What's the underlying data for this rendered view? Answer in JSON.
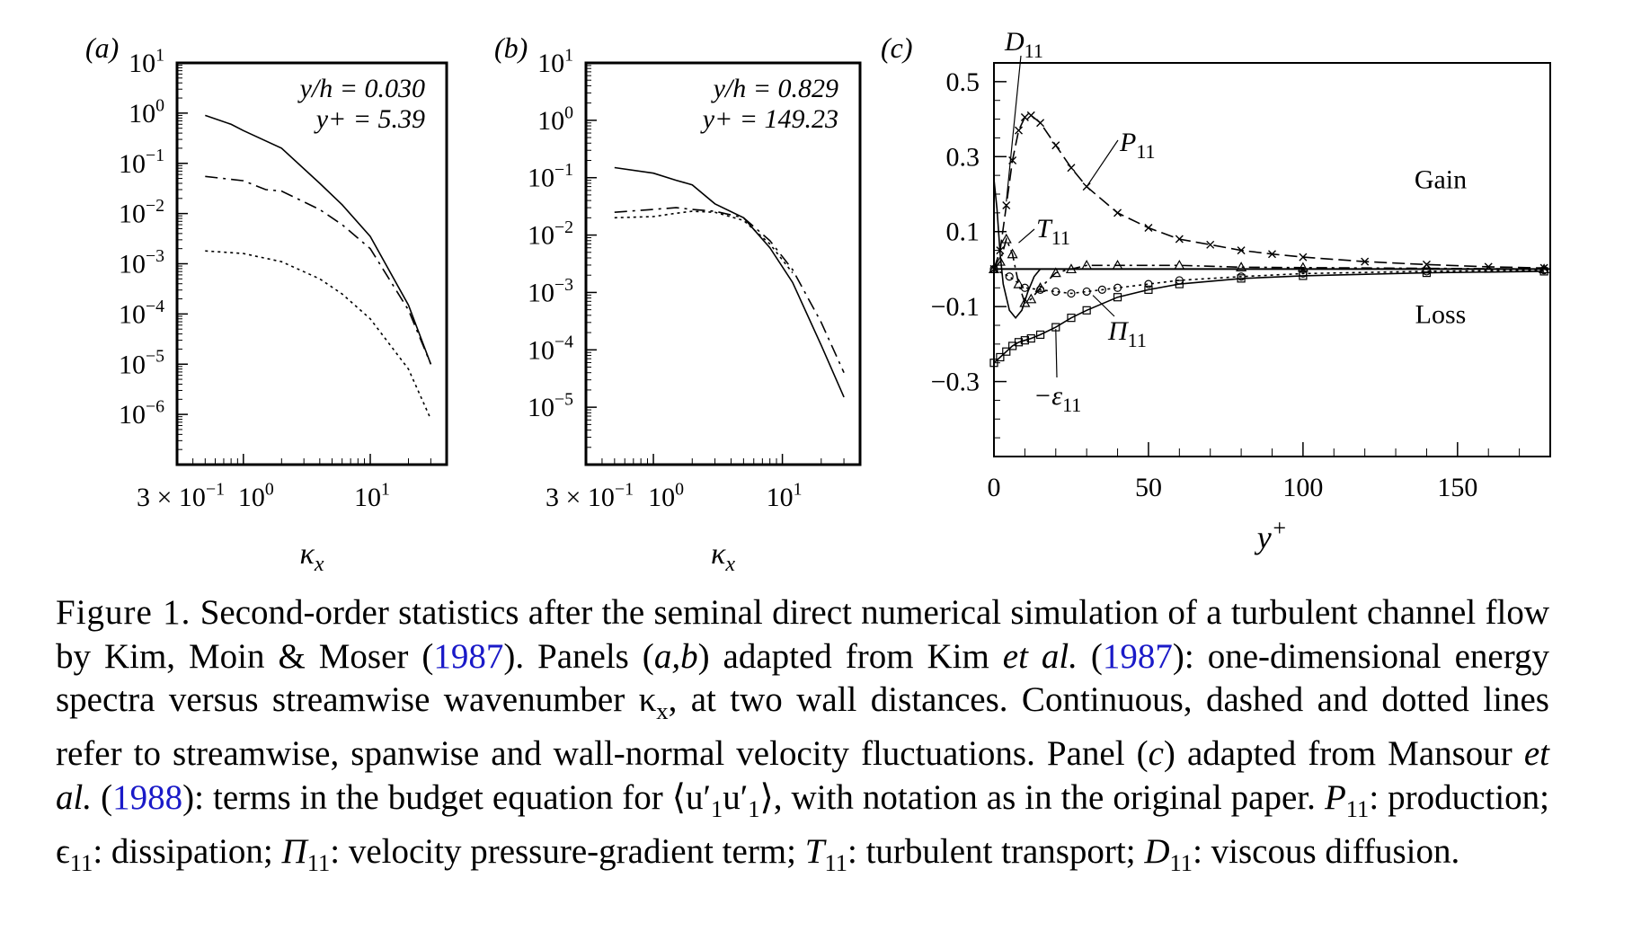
{
  "panels": {
    "a": {
      "label": "(a)",
      "ann_line1": "y/h = 0.030",
      "ann_line2": "y+ = 5.39",
      "yticks": [
        {
          "m": "10",
          "e": "1"
        },
        {
          "m": "10",
          "e": "0"
        },
        {
          "m": "10",
          "e": "−1"
        },
        {
          "m": "10",
          "e": "−2"
        },
        {
          "m": "10",
          "e": "−3"
        },
        {
          "m": "10",
          "e": "−4"
        },
        {
          "m": "10",
          "e": "−5"
        },
        {
          "m": "10",
          "e": "−6"
        }
      ],
      "xticks": [
        {
          "m": "3 × 10",
          "e": "−1"
        },
        {
          "m": "10",
          "e": "0"
        },
        {
          "m": "10",
          "e": "1"
        }
      ],
      "xlabel": "κx"
    },
    "b": {
      "label": "(b)",
      "ann_line1": "y/h = 0.829",
      "ann_line2": "y+ = 149.23",
      "yticks": [
        {
          "m": "10",
          "e": "1"
        },
        {
          "m": "10",
          "e": "0"
        },
        {
          "m": "10",
          "e": "−1"
        },
        {
          "m": "10",
          "e": "−2"
        },
        {
          "m": "10",
          "e": "−3"
        },
        {
          "m": "10",
          "e": "−4"
        },
        {
          "m": "10",
          "e": "−5"
        }
      ],
      "xticks": [
        {
          "m": "3 × 10",
          "e": "−1"
        },
        {
          "m": "10",
          "e": "0"
        },
        {
          "m": "10",
          "e": "1"
        }
      ],
      "xlabel": "κx"
    },
    "c": {
      "label": "(c)",
      "yticks": [
        "0.5",
        "0.3",
        "0.1",
        "−0.1",
        "−0.3"
      ],
      "xticks": [
        "0",
        "50",
        "100",
        "150"
      ],
      "xlabel": "y+",
      "gain": "Gain",
      "loss": "Loss",
      "term_labels": [
        "D11",
        "P11",
        "T11",
        "Π11",
        "−ε11"
      ]
    }
  },
  "chart_data": [
    {
      "type": "line",
      "panel": "a",
      "log_x": true,
      "log_y": true,
      "xlim": [
        0.3,
        40
      ],
      "ylim": [
        1e-07,
        10
      ],
      "xlabel": "κx",
      "annotations": [
        "y/h = 0.030",
        "y+ = 5.39"
      ],
      "series": [
        {
          "style": "solid",
          "x": [
            0.5,
            0.8,
            1,
            2,
            4,
            6,
            10,
            20,
            30
          ],
          "y": [
            0.9,
            0.6,
            0.45,
            0.2,
            0.04,
            0.015,
            0.0035,
            0.00015,
            1e-05
          ]
        },
        {
          "style": "dashed",
          "x": [
            0.5,
            1,
            1.5,
            2,
            4,
            6,
            10,
            20,
            30
          ],
          "y": [
            0.055,
            0.045,
            0.03,
            0.028,
            0.012,
            0.006,
            0.002,
            0.00012,
            1e-05
          ]
        },
        {
          "style": "dotted",
          "x": [
            0.5,
            1,
            2,
            4,
            6,
            10,
            20,
            30
          ],
          "y": [
            0.0018,
            0.0016,
            0.0011,
            0.0005,
            0.00025,
            8e-05,
            8e-06,
            8e-07
          ]
        }
      ]
    },
    {
      "type": "line",
      "panel": "b",
      "log_x": true,
      "log_y": true,
      "xlim": [
        0.3,
        40
      ],
      "ylim": [
        1e-06,
        10
      ],
      "xlabel": "κx",
      "annotations": [
        "y/h = 0.829",
        "y+ = 149.23"
      ],
      "series": [
        {
          "style": "solid",
          "x": [
            0.5,
            1,
            1.5,
            2,
            3,
            5,
            8,
            12,
            20,
            30
          ],
          "y": [
            0.15,
            0.12,
            0.09,
            0.075,
            0.035,
            0.02,
            0.006,
            0.0015,
            0.00012,
            1.5e-05
          ]
        },
        {
          "style": "dashed",
          "x": [
            0.5,
            1,
            1.5,
            2,
            3,
            5,
            8,
            12,
            20,
            30
          ],
          "y": [
            0.025,
            0.028,
            0.03,
            0.028,
            0.026,
            0.02,
            0.008,
            0.0025,
            0.0003,
            4e-05
          ]
        },
        {
          "style": "dotted",
          "x": [
            0.5,
            1,
            1.5,
            2,
            3,
            5,
            8,
            12
          ],
          "y": [
            0.02,
            0.021,
            0.024,
            0.026,
            0.025,
            0.018,
            0.007,
            0.0022
          ]
        }
      ]
    },
    {
      "type": "line",
      "panel": "c",
      "xlim": [
        0,
        180
      ],
      "ylim": [
        -0.5,
        0.55
      ],
      "xlabel": "y+",
      "annotations": [
        "Gain",
        "Loss"
      ],
      "series": [
        {
          "name": "D11",
          "style": "solid",
          "x": [
            0,
            1,
            2,
            3,
            5,
            7,
            9,
            11,
            13,
            15
          ],
          "y": [
            0.24,
            0.16,
            0.04,
            -0.04,
            -0.11,
            -0.13,
            -0.11,
            -0.06,
            -0.02,
            0
          ]
        },
        {
          "name": "P11",
          "style": "dashed-cross",
          "x": [
            0,
            2,
            4,
            6,
            8,
            10,
            12,
            15,
            20,
            25,
            30,
            40,
            50,
            60,
            70,
            80,
            90,
            100,
            120,
            140,
            160,
            178
          ],
          "y": [
            0,
            0.05,
            0.17,
            0.29,
            0.37,
            0.405,
            0.41,
            0.39,
            0.33,
            0.27,
            0.22,
            0.15,
            0.11,
            0.08,
            0.065,
            0.05,
            0.04,
            0.032,
            0.02,
            0.012,
            0.006,
            0.003
          ]
        },
        {
          "name": "T11",
          "style": "dashdot-triangle",
          "x": [
            0,
            2,
            4,
            6,
            8,
            10,
            12,
            15,
            20,
            25,
            30,
            40,
            60,
            80,
            100,
            140,
            178
          ],
          "y": [
            0,
            0.02,
            0.08,
            0.04,
            -0.04,
            -0.09,
            -0.08,
            -0.05,
            -0.01,
            0.0,
            0.01,
            0.01,
            0.01,
            0.005,
            0.004,
            0.002,
            0.0
          ]
        },
        {
          "name": "Π11",
          "style": "dotted-circle",
          "x": [
            0,
            5,
            10,
            15,
            20,
            25,
            30,
            35,
            40,
            50,
            60,
            80,
            100,
            140,
            178
          ],
          "y": [
            0,
            -0.02,
            -0.05,
            -0.055,
            -0.06,
            -0.065,
            -0.06,
            -0.055,
            -0.05,
            -0.04,
            -0.03,
            -0.02,
            -0.012,
            -0.006,
            -0.003
          ]
        },
        {
          "name": "−ε11",
          "style": "solid-square",
          "x": [
            0,
            2,
            4,
            6,
            8,
            10,
            12,
            15,
            20,
            25,
            30,
            40,
            50,
            60,
            80,
            100,
            140,
            178
          ],
          "y": [
            -0.25,
            -0.235,
            -0.22,
            -0.205,
            -0.195,
            -0.19,
            -0.185,
            -0.175,
            -0.155,
            -0.13,
            -0.11,
            -0.075,
            -0.055,
            -0.04,
            -0.025,
            -0.018,
            -0.01,
            -0.006
          ]
        }
      ]
    }
  ],
  "caption": {
    "fig": "Figure 1.",
    "s1": "Second-order statistics after the seminal direct numerical simulation of a turbulent channel flow by Kim, Moin & Moser (",
    "y1": "1987",
    "s2": "). Panels (",
    "ab": "a,b",
    "s3": ") adapted from Kim",
    "etal1": "et al.",
    "s4": " (",
    "y2": "1987",
    "s5": "): one-dimensional energy spectra versus streamwise wavenumber κ",
    "kx_sub": "x",
    "s6": ", at two wall distances. Continuous, dashed and dotted lines refer to streamwise, spanwise and wall-normal velocity fluctuations. Panel (",
    "c": "c",
    "s7": ") adapted from Mansour ",
    "etal2": "et al.",
    "s8": " (",
    "y3": "1988",
    "s9": "): terms in the budget equation for ⟨u′",
    "s9_sub1": "1",
    "s9_mid": "u′",
    "s9_sub2": "1",
    "s10": "⟩, with notation as in the original paper. ",
    "p": "P",
    "p_sub": "11",
    "s11": ": production; ϵ",
    "e_sub": "11",
    "s12": ": dissipation; ",
    "pi": "Π",
    "pi_sub": "11",
    "s13": ": velocity pressure-gradient term; ",
    "t": "T",
    "t_sub": "11",
    "s14": ": turbulent transport; ",
    "d": "D",
    "d_sub": "11",
    "s15": ": viscous diffusion."
  }
}
